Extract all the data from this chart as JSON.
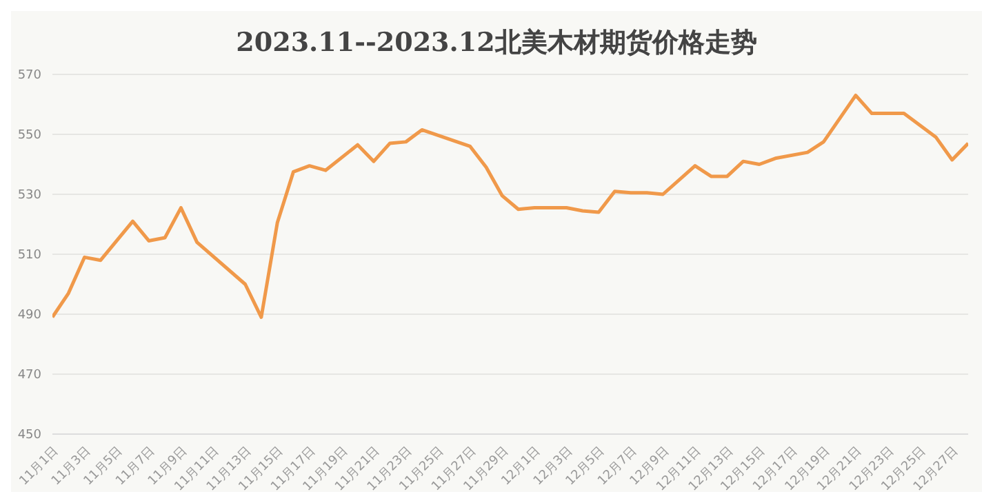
{
  "chart_data": {
    "type": "line",
    "title": "2023.11--2023.12北美木材期货价格走势",
    "x": [
      "2023-11-01",
      "2023-11-02",
      "2023-11-03",
      "2023-11-04",
      "2023-11-06",
      "2023-11-07",
      "2023-11-08",
      "2023-11-09",
      "2023-11-10",
      "2023-11-13",
      "2023-11-14",
      "2023-11-15",
      "2023-11-16",
      "2023-11-17",
      "2023-11-18",
      "2023-11-20",
      "2023-11-21",
      "2023-11-22",
      "2023-11-23",
      "2023-11-24",
      "2023-11-27",
      "2023-11-28",
      "2023-11-29",
      "2023-11-30",
      "2023-12-01",
      "2023-12-03",
      "2023-12-04",
      "2023-12-05",
      "2023-12-06",
      "2023-12-07",
      "2023-12-08",
      "2023-12-09",
      "2023-12-11",
      "2023-12-12",
      "2023-12-13",
      "2023-12-14",
      "2023-12-15",
      "2023-12-16",
      "2023-12-18",
      "2023-12-19",
      "2023-12-21",
      "2023-12-22",
      "2023-12-24",
      "2023-12-26",
      "2023-12-27",
      "2023-12-28"
    ],
    "series": [
      {
        "color": "#f0994a",
        "values": [
          489,
          497,
          509,
          508,
          521,
          514.5,
          515.5,
          525.5,
          514,
          500,
          489,
          520.5,
          537.5,
          539.5,
          538,
          546.5,
          541,
          547,
          547.5,
          551.5,
          546,
          539,
          529.5,
          525,
          525.5,
          525.5,
          524.5,
          524,
          531,
          530.5,
          530.5,
          530,
          539.5,
          536,
          536,
          541,
          540,
          542,
          544,
          547.5,
          563,
          557,
          557,
          549,
          541.5,
          547
        ]
      }
    ],
    "xlim": [
      "2023-11-01",
      "2023-12-28"
    ],
    "ylim": [
      450,
      570
    ],
    "yticks": [
      450,
      470,
      490,
      510,
      530,
      550,
      570
    ],
    "xticks": [
      {
        "value": "2023-11-01",
        "label": "11月1日"
      },
      {
        "value": "2023-11-03",
        "label": "11月3日"
      },
      {
        "value": "2023-11-05",
        "label": "11月5日"
      },
      {
        "value": "2023-11-07",
        "label": "11月7日"
      },
      {
        "value": "2023-11-09",
        "label": "11月9日"
      },
      {
        "value": "2023-11-11",
        "label": "11月11日"
      },
      {
        "value": "2023-11-13",
        "label": "11月13日"
      },
      {
        "value": "2023-11-15",
        "label": "11月15日"
      },
      {
        "value": "2023-11-17",
        "label": "11月17日"
      },
      {
        "value": "2023-11-19",
        "label": "11月19日"
      },
      {
        "value": "2023-11-21",
        "label": "11月21日"
      },
      {
        "value": "2023-11-23",
        "label": "11月23日"
      },
      {
        "value": "2023-11-25",
        "label": "11月25日"
      },
      {
        "value": "2023-11-27",
        "label": "11月27日"
      },
      {
        "value": "2023-11-29",
        "label": "11月29日"
      },
      {
        "value": "2023-12-01",
        "label": "12月1日"
      },
      {
        "value": "2023-12-03",
        "label": "12月3日"
      },
      {
        "value": "2023-12-05",
        "label": "12月5日"
      },
      {
        "value": "2023-12-07",
        "label": "12月7日"
      },
      {
        "value": "2023-12-09",
        "label": "12月9日"
      },
      {
        "value": "2023-12-11",
        "label": "12月11日"
      },
      {
        "value": "2023-12-13",
        "label": "12月13日"
      },
      {
        "value": "2023-12-15",
        "label": "12月15日"
      },
      {
        "value": "2023-12-17",
        "label": "12月17日"
      },
      {
        "value": "2023-12-19",
        "label": "12月19日"
      },
      {
        "value": "2023-12-21",
        "label": "12月21日"
      },
      {
        "value": "2023-12-23",
        "label": "12月23日"
      },
      {
        "value": "2023-12-25",
        "label": "12月25日"
      },
      {
        "value": "2023-12-27",
        "label": "12月27日"
      }
    ],
    "grid": "y",
    "legend": false,
    "marker": "none",
    "line_style": "solid"
  }
}
